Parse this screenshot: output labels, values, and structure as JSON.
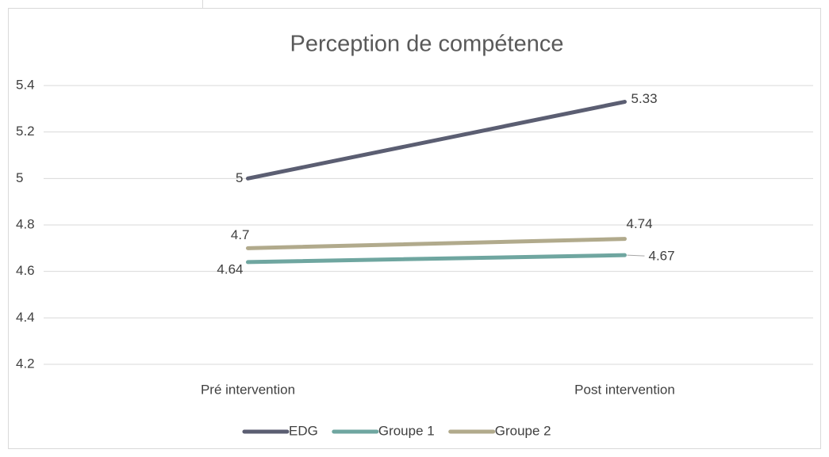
{
  "chart_data": {
    "type": "line",
    "title": "Perception de compétence",
    "categories": [
      "Pré intervention",
      "Post intervention"
    ],
    "series": [
      {
        "name": "EDG",
        "color": "#5b5e72",
        "values": [
          5,
          5.33
        ]
      },
      {
        "name": "Groupe 1",
        "color": "#6fa6a0",
        "values": [
          4.64,
          4.67
        ]
      },
      {
        "name": "Groupe 2",
        "color": "#b1aa8c",
        "values": [
          4.7,
          4.74
        ]
      }
    ],
    "ylim": [
      4.2,
      5.4
    ],
    "yticks": [
      4.2,
      4.4,
      4.6,
      4.8,
      5,
      5.2,
      5.4
    ],
    "grid": true,
    "legend": "bottom"
  }
}
